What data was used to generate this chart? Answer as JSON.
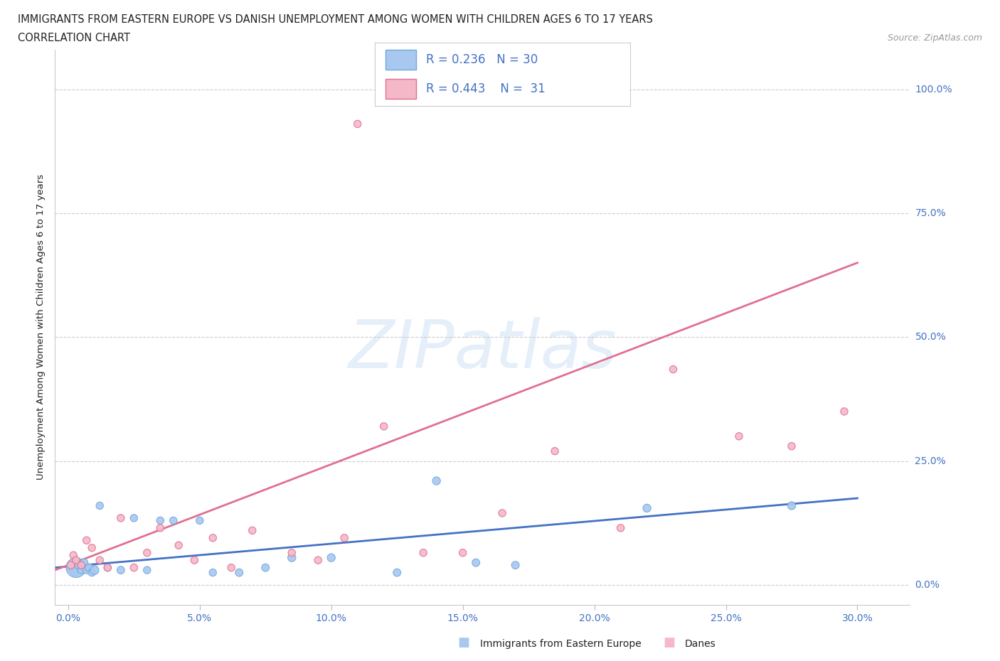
{
  "title_line1": "IMMIGRANTS FROM EASTERN EUROPE VS DANISH UNEMPLOYMENT AMONG WOMEN WITH CHILDREN AGES 6 TO 17 YEARS",
  "title_line2": "CORRELATION CHART",
  "source": "Source: ZipAtlas.com",
  "ylabel": "Unemployment Among Women with Children Ages 6 to 17 years",
  "xlabel_vals": [
    0.0,
    5.0,
    10.0,
    15.0,
    20.0,
    25.0,
    30.0
  ],
  "ylabel_vals": [
    0.0,
    25.0,
    50.0,
    75.0,
    100.0
  ],
  "xlim": [
    -0.5,
    32.0
  ],
  "ylim": [
    -4.0,
    108.0
  ],
  "blue_x": [
    0.1,
    0.2,
    0.25,
    0.3,
    0.4,
    0.5,
    0.6,
    0.7,
    0.8,
    0.9,
    1.0,
    1.2,
    1.5,
    2.0,
    2.5,
    3.0,
    3.5,
    4.0,
    5.0,
    5.5,
    6.5,
    7.5,
    8.5,
    10.0,
    12.5,
    14.0,
    15.5,
    17.0,
    22.0,
    27.5
  ],
  "blue_y": [
    3.5,
    3.0,
    2.5,
    3.5,
    4.0,
    3.0,
    4.5,
    3.0,
    3.5,
    2.5,
    3.0,
    16.0,
    3.5,
    3.0,
    13.5,
    3.0,
    13.0,
    13.0,
    13.0,
    2.5,
    2.5,
    3.5,
    5.5,
    5.5,
    2.5,
    21.0,
    4.5,
    4.0,
    15.5,
    16.0
  ],
  "blue_sizes": [
    80,
    70,
    60,
    400,
    65,
    55,
    65,
    55,
    65,
    55,
    80,
    55,
    55,
    60,
    55,
    55,
    55,
    55,
    55,
    55,
    60,
    60,
    65,
    65,
    60,
    65,
    60,
    60,
    65,
    65
  ],
  "pink_x": [
    0.1,
    0.2,
    0.3,
    0.5,
    0.7,
    0.9,
    1.2,
    1.5,
    2.0,
    2.5,
    3.0,
    3.5,
    4.2,
    4.8,
    5.5,
    6.2,
    7.0,
    8.5,
    9.5,
    10.5,
    11.0,
    12.0,
    13.5,
    15.0,
    16.5,
    18.5,
    21.0,
    23.0,
    25.5,
    27.5,
    29.5
  ],
  "pink_y": [
    4.0,
    6.0,
    5.0,
    4.0,
    9.0,
    7.5,
    5.0,
    3.5,
    13.5,
    3.5,
    6.5,
    11.5,
    8.0,
    5.0,
    9.5,
    3.5,
    11.0,
    6.5,
    5.0,
    9.5,
    93.0,
    32.0,
    6.5,
    6.5,
    14.5,
    27.0,
    11.5,
    43.5,
    30.0,
    28.0,
    35.0
  ],
  "pink_sizes": [
    60,
    55,
    55,
    55,
    55,
    55,
    55,
    55,
    55,
    55,
    55,
    55,
    55,
    55,
    55,
    55,
    55,
    55,
    55,
    55,
    55,
    55,
    55,
    55,
    55,
    55,
    55,
    55,
    55,
    55,
    55
  ],
  "blue_color": "#a8c8f0",
  "blue_edge": "#6fa8dc",
  "pink_color": "#f5b8c8",
  "pink_edge": "#e07090",
  "blue_R": 0.236,
  "blue_N": 30,
  "pink_R": 0.443,
  "pink_N": 31,
  "blue_line_x0": -0.5,
  "blue_line_x1": 30.0,
  "blue_line_y0": 3.5,
  "blue_line_y1": 17.5,
  "pink_line_x0": -0.5,
  "pink_line_x1": 30.0,
  "pink_line_y0": 3.0,
  "pink_line_y1": 65.0,
  "watermark_text": "ZIPatlas",
  "bg_color": "#ffffff",
  "grid_color": "#cccccc",
  "accent_blue": "#4472c4",
  "text_dark": "#222222",
  "source_color": "#999999"
}
